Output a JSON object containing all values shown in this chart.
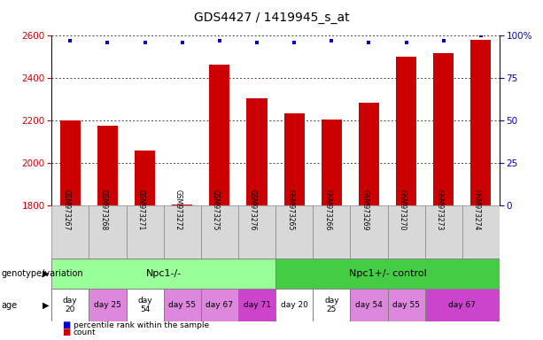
{
  "title": "GDS4427 / 1419945_s_at",
  "samples": [
    "GSM973267",
    "GSM973268",
    "GSM973271",
    "GSM973272",
    "GSM973275",
    "GSM973276",
    "GSM973265",
    "GSM973266",
    "GSM973269",
    "GSM973270",
    "GSM973273",
    "GSM973274"
  ],
  "bar_values": [
    2200,
    2175,
    2060,
    1804,
    2465,
    2305,
    2235,
    2205,
    2285,
    2500,
    2520,
    2580
  ],
  "percentile_values": [
    97,
    96,
    96,
    96,
    97,
    96,
    96,
    97,
    96,
    96,
    97,
    100
  ],
  "bar_color": "#cc0000",
  "dot_color": "#0000cc",
  "ylim_left": [
    1800,
    2600
  ],
  "ylim_right": [
    0,
    100
  ],
  "yticks_left": [
    1800,
    2000,
    2200,
    2400,
    2600
  ],
  "yticks_right": [
    0,
    25,
    50,
    75,
    100
  ],
  "yticklabels_right": [
    "0",
    "25",
    "50",
    "75",
    "100%"
  ],
  "tick_label_color_left": "#cc0000",
  "tick_label_color_right": "#0000cc",
  "grid_color": "#000000",
  "sample_label_bg": "#d8d8d8",
  "sample_label_border": "#888888",
  "genotype_groups": [
    {
      "label": "Npc1-/-",
      "start": 0,
      "end": 6,
      "color": "#99ff99"
    },
    {
      "label": "Npc1+/- control",
      "start": 6,
      "end": 12,
      "color": "#44cc44"
    }
  ],
  "age_groups": [
    {
      "label": "day\n20",
      "start": 0,
      "end": 1,
      "color": "#ffffff"
    },
    {
      "label": "day 25",
      "start": 1,
      "end": 2,
      "color": "#dd88dd"
    },
    {
      "label": "day\n54",
      "start": 2,
      "end": 3,
      "color": "#ffffff"
    },
    {
      "label": "day 55",
      "start": 3,
      "end": 4,
      "color": "#dd88dd"
    },
    {
      "label": "day 67",
      "start": 4,
      "end": 5,
      "color": "#dd88dd"
    },
    {
      "label": "day 71",
      "start": 5,
      "end": 6,
      "color": "#cc44cc"
    },
    {
      "label": "day 20",
      "start": 6,
      "end": 7,
      "color": "#ffffff"
    },
    {
      "label": "day\n25",
      "start": 7,
      "end": 8,
      "color": "#ffffff"
    },
    {
      "label": "day 54",
      "start": 8,
      "end": 9,
      "color": "#dd88dd"
    },
    {
      "label": "day 55",
      "start": 9,
      "end": 10,
      "color": "#dd88dd"
    },
    {
      "label": "day 67",
      "start": 10,
      "end": 12,
      "color": "#cc44cc"
    }
  ],
  "genotype_row_label": "genotype/variation",
  "age_row_label": "age",
  "legend_count_color": "#cc0000",
  "legend_percentile_color": "#0000cc",
  "background_color": "#ffffff"
}
